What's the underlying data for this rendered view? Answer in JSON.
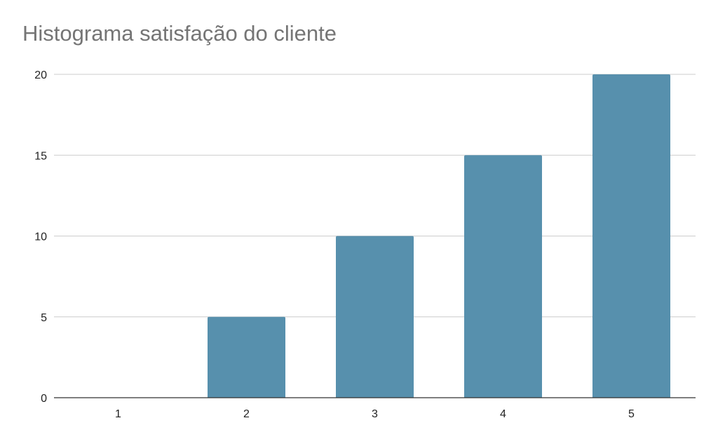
{
  "chart_data": {
    "type": "bar",
    "title": "Histograma satisfação do cliente",
    "xlabel": "",
    "ylabel": "",
    "categories": [
      "1",
      "2",
      "3",
      "4",
      "5"
    ],
    "values": [
      0,
      5,
      10,
      15,
      20
    ],
    "ylim": [
      0,
      20
    ],
    "yticks": [
      "0",
      "5",
      "10",
      "15",
      "20"
    ],
    "grid": true,
    "legend": "none",
    "colors": {
      "bar": "#5790ad",
      "grid": "#cccccc",
      "axis": "#333333",
      "title": "#757575"
    }
  }
}
